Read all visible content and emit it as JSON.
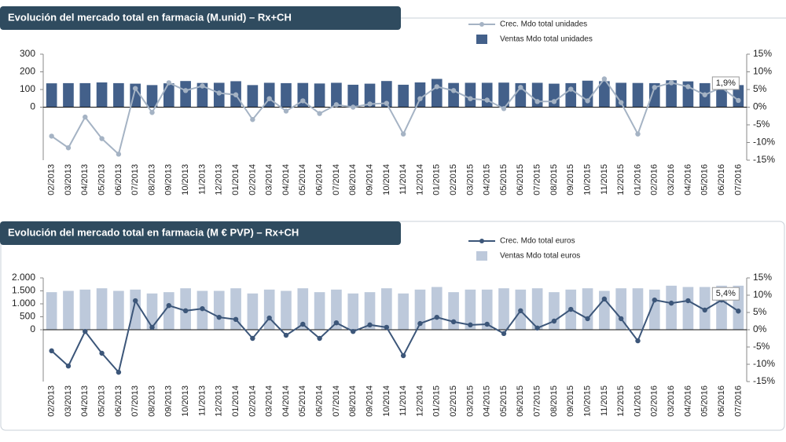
{
  "chart_data": [
    {
      "type": "combo",
      "title": "Evolución del mercado total en farmacia (M.unid) – Rx+CH",
      "categories": [
        "02/2013",
        "03/2013",
        "04/2013",
        "05/2013",
        "06/2013",
        "07/2013",
        "08/2013",
        "09/2013",
        "10/2013",
        "11/2013",
        "12/2013",
        "01/2014",
        "02/2014",
        "03/2014",
        "04/2014",
        "05/2014",
        "06/2014",
        "07/2014",
        "08/2014",
        "09/2014",
        "10/2014",
        "11/2014",
        "12/2014",
        "01/2015",
        "02/2015",
        "03/2015",
        "04/2015",
        "05/2015",
        "06/2015",
        "07/2015",
        "08/2015",
        "09/2015",
        "10/2015",
        "11/2015",
        "12/2015",
        "01/2016",
        "02/2016",
        "03/2016",
        "04/2016",
        "05/2016",
        "06/2016",
        "07/2016"
      ],
      "series": [
        {
          "name": "Crec. Mdo total unidades",
          "type": "line",
          "axis": "y2",
          "color": "#a5b3c4",
          "values": [
            -8.2,
            -11.5,
            -2.8,
            -8.9,
            -13.3,
            5.3,
            -1.5,
            6.9,
            4.7,
            6,
            4,
            3.5,
            -3.5,
            2.4,
            -1.1,
            1.8,
            -1.8,
            0.7,
            0,
            0.9,
            1.1,
            -7.6,
            2.4,
            5.8,
            4.7,
            2.4,
            2,
            -0.4,
            5.6,
            1.6,
            1.6,
            5.1,
            1.8,
            8,
            1.3,
            -7.6,
            5.6,
            6.9,
            5.8,
            3.5,
            5.6,
            1.9
          ],
          "value_labels": [
            null,
            null,
            null,
            null,
            null,
            null,
            null,
            null,
            null,
            null,
            null,
            null,
            null,
            null,
            null,
            null,
            null,
            null,
            null,
            null,
            null,
            null,
            null,
            null,
            null,
            null,
            null,
            null,
            null,
            null,
            null,
            null,
            null,
            null,
            null,
            null,
            null,
            null,
            null,
            null,
            null,
            "1,9%"
          ]
        },
        {
          "name": "Ventas Mdo total unidades",
          "type": "bar",
          "color": "#43608a",
          "values": [
            135,
            136,
            136,
            140,
            136,
            133,
            125,
            135,
            148,
            137,
            138,
            147,
            125,
            138,
            136,
            137,
            134,
            138,
            127,
            133,
            148,
            127,
            140,
            160,
            137,
            138,
            138,
            139,
            136,
            138,
            133,
            136,
            150,
            147,
            138,
            137,
            136,
            152,
            146,
            136,
            140,
            125
          ]
        }
      ],
      "ylim": [
        -300,
        300
      ],
      "yticks": [
        0,
        100,
        200,
        300
      ],
      "y2lim": [
        -15,
        15
      ],
      "y2ticks": [
        {
          "value": -15,
          "label": "-15%"
        },
        {
          "value": -10,
          "label": "-10%"
        },
        {
          "value": -5,
          "label": "-5%"
        },
        {
          "value": 0,
          "label": "0%"
        },
        {
          "value": 5,
          "label": "5%"
        },
        {
          "value": 10,
          "label": "10%"
        },
        {
          "value": 15,
          "label": "15%"
        }
      ]
    },
    {
      "type": "combo",
      "title": "Evolución del mercado total en farmacia (M € PVP) – Rx+CH",
      "categories": [
        "02/2013",
        "03/2013",
        "04/2013",
        "05/2013",
        "06/2013",
        "07/2013",
        "08/2013",
        "09/2013",
        "10/2013",
        "11/2013",
        "12/2013",
        "01/2014",
        "02/2014",
        "03/2014",
        "04/2014",
        "05/2014",
        "06/2014",
        "07/2014",
        "08/2014",
        "09/2014",
        "10/2014",
        "11/2014",
        "12/2014",
        "01/2015",
        "02/2015",
        "03/2015",
        "04/2015",
        "05/2015",
        "06/2015",
        "07/2015",
        "08/2015",
        "09/2015",
        "10/2015",
        "11/2015",
        "12/2015",
        "01/2016",
        "02/2016",
        "03/2016",
        "04/2016",
        "05/2016",
        "06/2016",
        "07/2016"
      ],
      "series": [
        {
          "name": "Crec. Mdo total euros",
          "type": "line",
          "axis": "y2",
          "color": "#3c5679",
          "values": [
            -6.1,
            -10.5,
            -0.5,
            -6.8,
            -12.3,
            8.4,
            0.7,
            7,
            5.5,
            6.1,
            3.6,
            3,
            -2.5,
            3.4,
            -1.6,
            1.6,
            -2.5,
            2,
            -0.5,
            1.4,
            0.7,
            -7.5,
            1.8,
            3.6,
            2.3,
            1.4,
            1.6,
            -1.1,
            5.5,
            0.5,
            2.5,
            5.9,
            3.2,
            8.9,
            3.2,
            -3.2,
            8.6,
            7.7,
            8.4,
            5.7,
            8.6,
            5.4
          ],
          "value_labels": [
            null,
            null,
            null,
            null,
            null,
            null,
            null,
            null,
            null,
            null,
            null,
            null,
            null,
            null,
            null,
            null,
            null,
            null,
            null,
            null,
            null,
            null,
            null,
            null,
            null,
            null,
            null,
            null,
            null,
            null,
            null,
            null,
            null,
            null,
            null,
            null,
            null,
            null,
            null,
            null,
            null,
            "5,4%"
          ]
        },
        {
          "name": "Ventas Mdo total euros",
          "type": "bar",
          "color": "#bdc9db",
          "values": [
            1450,
            1500,
            1550,
            1600,
            1500,
            1550,
            1400,
            1450,
            1600,
            1500,
            1500,
            1600,
            1400,
            1550,
            1500,
            1600,
            1450,
            1550,
            1400,
            1450,
            1600,
            1400,
            1550,
            1650,
            1450,
            1550,
            1550,
            1600,
            1550,
            1600,
            1450,
            1550,
            1600,
            1500,
            1600,
            1600,
            1550,
            1700,
            1650,
            1650,
            1700,
            1700
          ]
        }
      ],
      "ylim": [
        -2000,
        2000
      ],
      "yticks": [
        0,
        500,
        {
          "value": 1000,
          "label": "1.000"
        },
        {
          "value": 1500,
          "label": "1.500"
        },
        {
          "value": 2000,
          "label": "2.000"
        }
      ],
      "y2lim": [
        -15,
        15
      ],
      "y2ticks": [
        {
          "value": -15,
          "label": "-15%"
        },
        {
          "value": -10,
          "label": "-10%"
        },
        {
          "value": -5,
          "label": "-5%"
        },
        {
          "value": 0,
          "label": "0%"
        },
        {
          "value": 5,
          "label": "5%"
        },
        {
          "value": 10,
          "label": "10%"
        },
        {
          "value": 15,
          "label": "15%"
        }
      ]
    }
  ]
}
